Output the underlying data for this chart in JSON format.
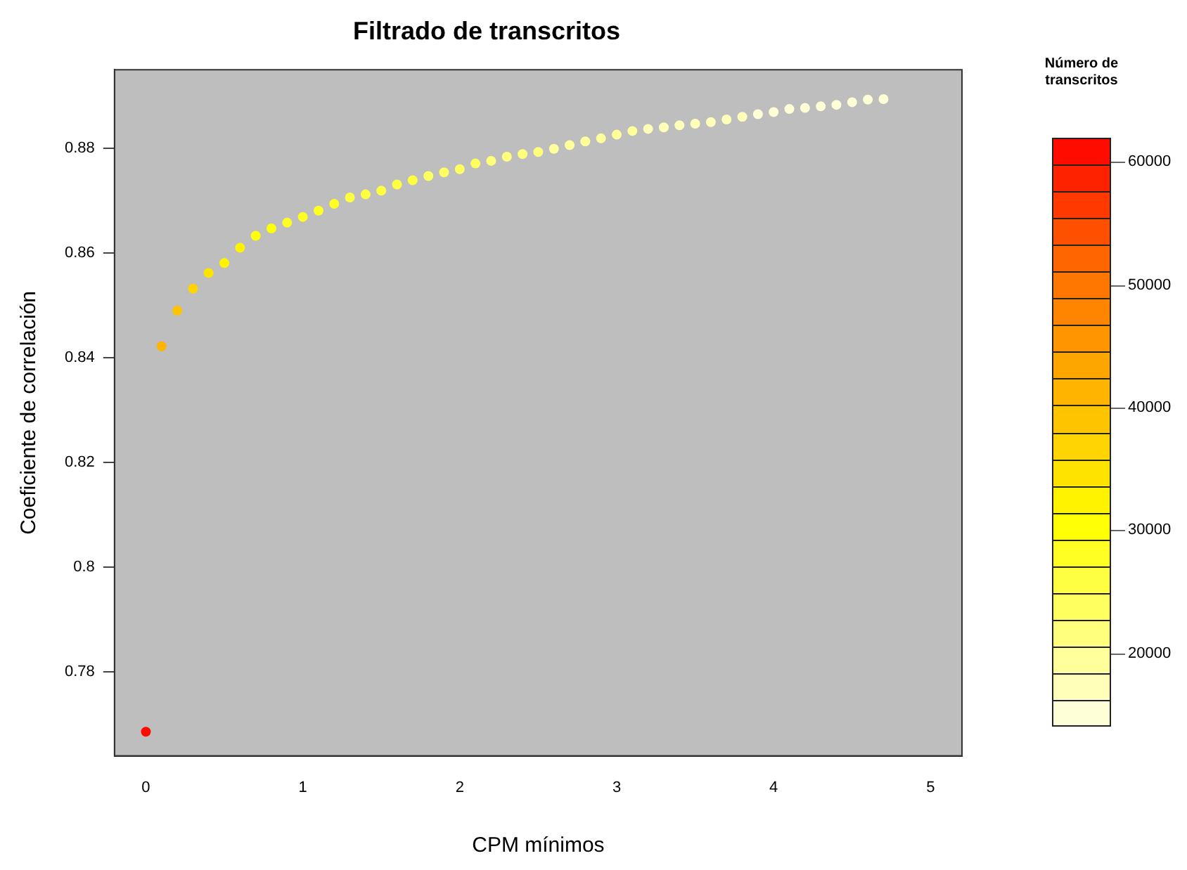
{
  "chart_data": {
    "type": "scatter",
    "title": "Filtrado de transcritos",
    "xlabel": "CPM mínimos",
    "ylabel": "Coeficiente de correlación",
    "clabel": "Número de transcritos",
    "x": [
      0,
      0.1,
      0.2,
      0.3,
      0.4,
      0.5,
      0.6,
      0.7,
      0.8,
      0.9,
      1.0,
      1.1,
      1.2,
      1.3,
      1.4,
      1.5,
      1.6,
      1.7,
      1.8,
      1.9,
      2.0,
      2.1,
      2.2,
      2.3,
      2.4,
      2.5,
      2.6,
      2.7,
      2.8,
      2.9,
      3.0,
      3.1,
      3.2,
      3.3,
      3.4,
      3.5,
      3.6,
      3.7,
      3.8,
      3.9,
      4.0,
      4.1,
      4.2,
      4.3,
      4.4,
      4.5,
      4.6,
      4.7
    ],
    "values": [
      0.7686,
      0.8422,
      0.849,
      0.8532,
      0.8562,
      0.8581,
      0.861,
      0.8633,
      0.8647,
      0.8658,
      0.8669,
      0.8681,
      0.8694,
      0.8706,
      0.8712,
      0.8719,
      0.8731,
      0.8739,
      0.8747,
      0.8754,
      0.876,
      0.8771,
      0.8776,
      0.8784,
      0.8789,
      0.8793,
      0.8799,
      0.8806,
      0.8813,
      0.8819,
      0.8826,
      0.8833,
      0.8837,
      0.884,
      0.8844,
      0.8847,
      0.885,
      0.8855,
      0.886,
      0.8865,
      0.8869,
      0.8875,
      0.8877,
      0.888,
      0.8883,
      0.8888,
      0.8893,
      0.8894
    ],
    "cvalues": [
      62000,
      42000,
      38000,
      36000,
      34500,
      33000,
      31500,
      30500,
      29500,
      29000,
      28500,
      28000,
      27500,
      27000,
      26500,
      26000,
      25500,
      25000,
      24500,
      24000,
      23500,
      23000,
      22500,
      22000,
      21500,
      21000,
      20500,
      20000,
      19500,
      19000,
      18700,
      18400,
      18100,
      17800,
      17500,
      17200,
      16900,
      16600,
      16300,
      16000,
      15800,
      15600,
      15400,
      15200,
      15000,
      14800,
      14600,
      14400
    ],
    "xlim": [
      -0.2,
      5.2
    ],
    "xticks": [
      0,
      1,
      2,
      3,
      4,
      5
    ],
    "ylim": [
      0.764,
      0.895
    ],
    "yticks": [
      0.78,
      0.8,
      0.82,
      0.84,
      0.86,
      0.88
    ],
    "clim": [
      14000,
      62000
    ],
    "cticks": [
      20000,
      30000,
      40000,
      50000,
      60000
    ],
    "grid": false,
    "legend": false,
    "marker": "circle"
  }
}
